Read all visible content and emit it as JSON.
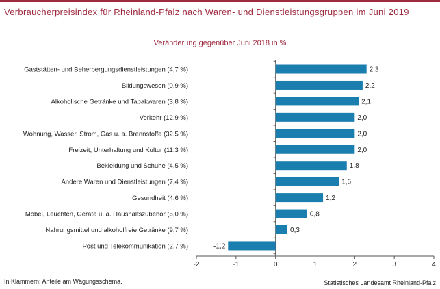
{
  "title": "Verbraucherpreisindex für Rheinland-Pfalz nach Waren- und Dienstleistungsgruppen im Juni 2019",
  "footnote": "In Klammern: Anteile am Wägungsschema.",
  "source": "Statistisches Landesamt Rheinland-Pfalz",
  "colors": {
    "bar": "#1a7fae",
    "accent": "#9e2a3e",
    "text": "#222222",
    "axis": "#555555"
  },
  "chart_data": {
    "type": "bar",
    "orientation": "horizontal",
    "subtitle": "Veränderung gegenüber Juni 2018 in %",
    "categories": [
      "Gaststätten- und Beherbergungsdienstleistungen (4,7 %)",
      "Bildungswesen (0,9 %)",
      "Alkoholische Getränke und Tabakwaren (3,8 %)",
      "Verkehr (12,9 %)",
      "Wohnung, Wasser, Strom, Gas u. a. Brennstoffe (32,5 %)",
      "Freizeit, Unterhaltung und Kultur (11,3 %)",
      "Bekleidung und Schuhe (4,5 %)",
      "Andere Waren und Dienstleistungen (7,4 %)",
      "Gesundheit (4,6 %)",
      "Möbel, Leuchten, Geräte u. a. Haushaltszubehör (5,0 %)",
      "Nahrungsmittel und alkoholfreie Getränke (9,7 %)",
      "Post und Telekommunikation (2,7 %)"
    ],
    "values": [
      2.3,
      2.2,
      2.1,
      2.0,
      2.0,
      2.0,
      1.8,
      1.6,
      1.2,
      0.8,
      0.3,
      -1.2
    ],
    "value_labels": [
      "2,3",
      "2,2",
      "2,1",
      "2,0",
      "2,0",
      "2,0",
      "1,8",
      "1,6",
      "1,2",
      "0,8",
      "0,3",
      "-1,2"
    ],
    "xlim": [
      -2,
      4
    ],
    "xticks": [
      -2,
      -1,
      0,
      1,
      2,
      3,
      4
    ],
    "xtick_labels": [
      "-2",
      "-1",
      "0",
      "1",
      "2",
      "3",
      "4"
    ],
    "grid": false,
    "legend": false
  }
}
